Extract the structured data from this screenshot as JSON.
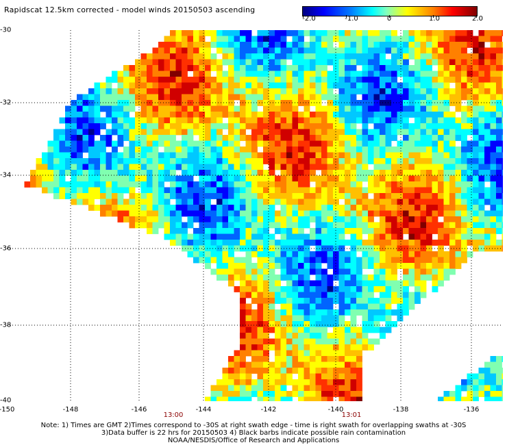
{
  "title": "Rapidscat 12.5km corrected - model winds 20150503 ascending",
  "colorbar": {
    "ticks": [
      "-2.0",
      "-1.0",
      "0",
      "1.0",
      "2.0"
    ],
    "colors": [
      "#00008b",
      "#0000ff",
      "#0064ff",
      "#00c8ff",
      "#00ffff",
      "#80ffb0",
      "#ffff00",
      "#ffc000",
      "#ff8000",
      "#ff3000",
      "#d00000",
      "#800000"
    ]
  },
  "axes": {
    "lat_labels": [
      "-30",
      "-32",
      "-34",
      "-36",
      "-38",
      "-40"
    ],
    "lon_labels": [
      "-150",
      "-148",
      "-146",
      "-144",
      "-142",
      "-140",
      "-138",
      "-136"
    ]
  },
  "times": [
    "13:00",
    "13:01"
  ],
  "notes": [
    "Note: 1) Times are GMT 2)Times correspond to -30S at right swath edge - time is right swath for overlapping swaths at -30S",
    "3)Data buffer is 22 hrs for 20150503 4) Black barbs indicate possible rain contamination",
    "NOAA/NESDIS/Office of Research and Applications"
  ]
}
